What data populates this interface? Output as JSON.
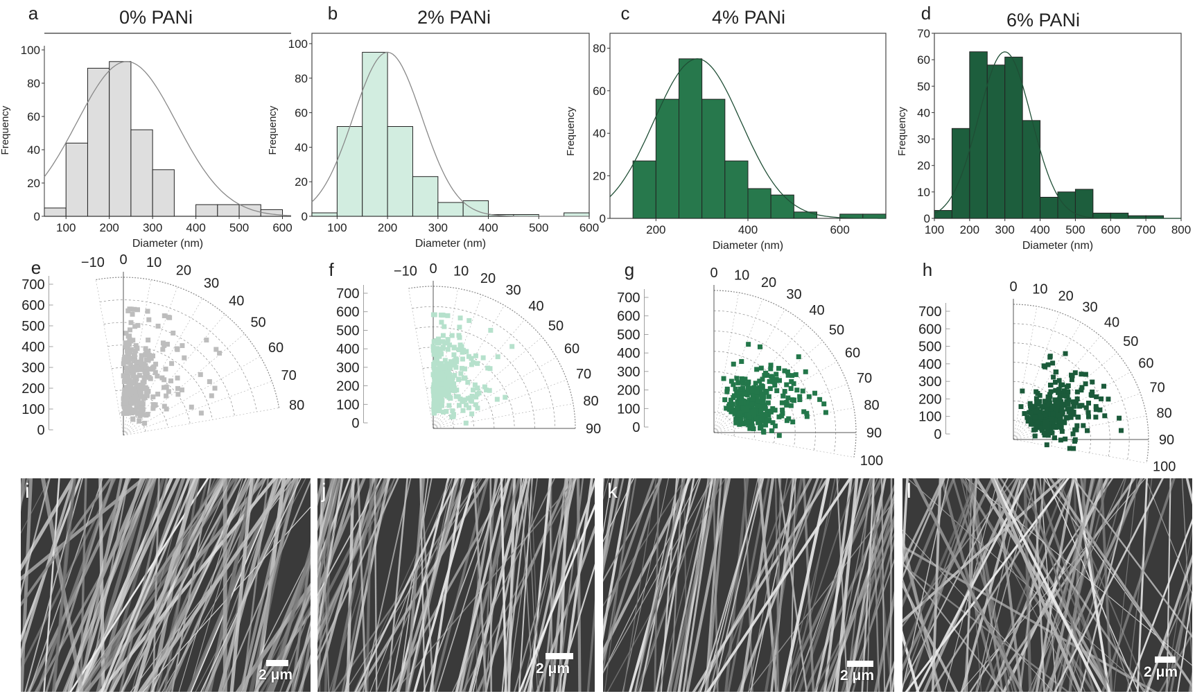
{
  "colors": {
    "gray": "#dedede",
    "mint": "#d2ede0",
    "green4": "#27784c",
    "green6": "#1d5e3d",
    "gray_points": "#bdbdbd",
    "mint_points": "#b6e1cc",
    "green_points": "#23774a",
    "dark_points": "#1b5a3a",
    "fit": "#888888"
  },
  "chart_data": [
    {
      "type": "bar",
      "panel": "a",
      "title": "0% PANi",
      "xlabel": "Diameter (nm)",
      "ylabel": "Frequency",
      "xlim": [
        50,
        620
      ],
      "ylim": [
        0,
        110
      ],
      "xticks": [
        100,
        200,
        300,
        400,
        500,
        600
      ],
      "yticks": [
        0,
        20,
        40,
        60,
        80,
        100
      ],
      "bins": [
        [
          50,
          100,
          5
        ],
        [
          100,
          150,
          44
        ],
        [
          150,
          200,
          89
        ],
        [
          200,
          250,
          93
        ],
        [
          250,
          300,
          52
        ],
        [
          300,
          350,
          28
        ],
        [
          350,
          400,
          0
        ],
        [
          400,
          450,
          7
        ],
        [
          450,
          500,
          7
        ],
        [
          500,
          550,
          7
        ],
        [
          550,
          600,
          4
        ]
      ],
      "fit": {
        "mean": 240,
        "sd": 115,
        "peak": 93
      }
    },
    {
      "type": "bar",
      "panel": "b",
      "title": "2% PANi",
      "xlabel": "Diameter (nm)",
      "ylabel": "Frequency",
      "xlim": [
        50,
        600
      ],
      "ylim": [
        0,
        106
      ],
      "xticks": [
        100,
        200,
        300,
        400,
        500,
        600
      ],
      "yticks": [
        0,
        20,
        40,
        60,
        80,
        100
      ],
      "bins": [
        [
          50,
          100,
          2
        ],
        [
          100,
          150,
          52
        ],
        [
          150,
          200,
          95
        ],
        [
          200,
          250,
          52
        ],
        [
          250,
          300,
          23
        ],
        [
          300,
          350,
          8
        ],
        [
          350,
          400,
          9
        ],
        [
          400,
          450,
          1
        ],
        [
          450,
          500,
          1
        ],
        [
          500,
          550,
          0
        ],
        [
          550,
          600,
          2
        ]
      ],
      "fit": {
        "mean": 200,
        "sd": 68,
        "peak": 95
      }
    },
    {
      "type": "bar",
      "panel": "c",
      "title": "4% PANi",
      "xlabel": "Diameter (nm)",
      "ylabel": "Frequency",
      "xlim": [
        100,
        700
      ],
      "ylim": [
        0,
        87
      ],
      "xticks": [
        200,
        400,
        600
      ],
      "yticks": [
        0,
        20,
        40,
        60,
        80
      ],
      "bins": [
        [
          150,
          200,
          27
        ],
        [
          200,
          250,
          56
        ],
        [
          250,
          300,
          75
        ],
        [
          300,
          350,
          56
        ],
        [
          350,
          400,
          27
        ],
        [
          400,
          450,
          14
        ],
        [
          450,
          500,
          11
        ],
        [
          500,
          550,
          3
        ],
        [
          550,
          600,
          0
        ],
        [
          600,
          650,
          2
        ],
        [
          650,
          700,
          2
        ]
      ],
      "fit": {
        "mean": 290,
        "sd": 95,
        "peak": 75
      }
    },
    {
      "type": "bar",
      "panel": "d",
      "title": "6% PANi",
      "xlabel": "Diameter (nm)",
      "ylabel": "Frequency",
      "xlim": [
        100,
        800
      ],
      "ylim": [
        0,
        70
      ],
      "xticks": [
        100,
        200,
        300,
        400,
        500,
        600,
        700,
        800
      ],
      "yticks": [
        0,
        10,
        20,
        30,
        40,
        50,
        60,
        70
      ],
      "bins": [
        [
          100,
          150,
          3
        ],
        [
          150,
          200,
          34
        ],
        [
          200,
          250,
          63
        ],
        [
          250,
          300,
          58
        ],
        [
          300,
          350,
          61
        ],
        [
          350,
          400,
          37
        ],
        [
          400,
          450,
          8
        ],
        [
          450,
          500,
          10
        ],
        [
          500,
          550,
          11
        ],
        [
          550,
          600,
          2
        ],
        [
          600,
          650,
          2
        ],
        [
          650,
          700,
          1
        ],
        [
          700,
          750,
          1
        ]
      ],
      "fit": {
        "mean": 300,
        "sd": 75,
        "peak": 63
      }
    },
    {
      "type": "scatter",
      "panel": "e",
      "projection": "polar",
      "angle_ticks": [
        "-10",
        "0",
        "10",
        "20",
        "30",
        "40",
        "50",
        "60",
        "70",
        "80"
      ],
      "radial_ticks": [
        "0",
        "100",
        "200",
        "300",
        "400",
        "500",
        "600",
        "700"
      ],
      "radial_max": 700,
      "angle_range": [
        -10,
        80
      ]
    },
    {
      "type": "scatter",
      "panel": "f",
      "projection": "polar",
      "angle_ticks": [
        "-10",
        "0",
        "10",
        "20",
        "30",
        "40",
        "50",
        "60",
        "70",
        "80",
        "90"
      ],
      "radial_ticks": [
        "0",
        "100",
        "200",
        "300",
        "400",
        "500",
        "600",
        "700"
      ],
      "radial_max": 700,
      "angle_range": [
        -10,
        90
      ]
    },
    {
      "type": "scatter",
      "panel": "g",
      "projection": "polar",
      "angle_ticks": [
        "0",
        "10",
        "20",
        "30",
        "40",
        "50",
        "60",
        "70",
        "80",
        "90",
        "100"
      ],
      "radial_ticks": [
        "0",
        "100",
        "200",
        "300",
        "400",
        "500",
        "600",
        "700"
      ],
      "radial_max": 700,
      "angle_range": [
        0,
        100
      ]
    },
    {
      "type": "scatter",
      "panel": "h",
      "projection": "polar",
      "angle_ticks": [
        "0",
        "10",
        "20",
        "30",
        "40",
        "50",
        "60",
        "70",
        "80",
        "90",
        "100"
      ],
      "radial_ticks": [
        "0",
        "100",
        "200",
        "300",
        "400",
        "500",
        "600",
        "700"
      ],
      "radial_max": 700,
      "angle_range": [
        0,
        100
      ]
    }
  ],
  "micrographs": [
    {
      "letter": "i",
      "scale": "2 μm"
    },
    {
      "letter": "j",
      "scale": "2 μm"
    },
    {
      "letter": "k",
      "scale": "2 μm"
    },
    {
      "letter": "l",
      "scale": "2 μm"
    }
  ]
}
